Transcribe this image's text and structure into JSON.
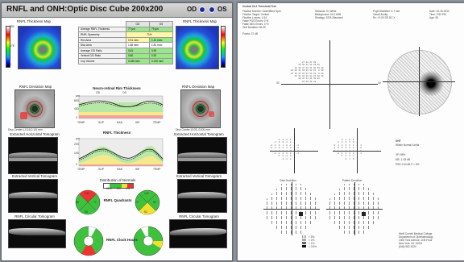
{
  "oct": {
    "title": "RNFL and ONH:Optic Disc Cube 200x200",
    "od_label": "OD",
    "os_label": "OS",
    "od_dot_color": "#1c2a9a",
    "os_dot_color": "#1c2a9a",
    "left_map_title": "RNFL Thickness Map",
    "right_map_title": "RNFL Thickness Map",
    "scale_top": "350",
    "scale_mid": "175",
    "scale_bot": "0",
    "table_header": [
      "",
      "OD",
      "OS"
    ],
    "table_rows": [
      [
        "Average RNFL Thickness",
        "77 µm",
        "79 µm"
      ],
      [
        "RNFL Symmetry",
        "71%",
        ""
      ],
      [
        "Rim Area",
        "0.91 mm²",
        "1.10 mm²"
      ],
      [
        "Disc Area",
        "1.85 mm²",
        "1.81 mm²"
      ],
      [
        "Average C/D Ratio",
        "0.61",
        "0.50"
      ],
      [
        "Vertical C/D Ratio",
        "0.60",
        "0.52"
      ],
      [
        "Cup Volume",
        "0.185 mm³",
        "0.130 mm³"
      ]
    ],
    "left_dev_title": "RNFL Deviation Map",
    "right_dev_title": "RNFL Deviation Map",
    "rim_title": "Neuro-retinal Rim Thickness",
    "rnfl_title": "RNFL Thickness",
    "legend_od": "OD",
    "legend_os": "OS",
    "plot_unit": "µm",
    "plot_yticks": [
      "800",
      "400",
      "0"
    ],
    "rnfl_yticks": [
      "200",
      "100",
      "0"
    ],
    "plot_xticks": [
      "TEMP",
      "SUP",
      "NAS",
      "INF",
      "TEMP"
    ],
    "left_center": "Disc Center (-0.16,0.12) mm",
    "right_center": "Disc Center (0.03,-0.03) mm",
    "left_extract_h": "Extracted Horizontal Tomogram",
    "right_extract_h": "Extracted Horizontal Tomogram",
    "left_extract_v": "Extracted Vertical Tomogram",
    "right_extract_v": "Extracted Vertical Tomogram",
    "left_circ": "RNFL Circular Tomogram",
    "right_circ": "RNFL Circular Tomogram",
    "dist_title": "Distribution of Normals",
    "dist_labels": [
      "95%",
      "5%",
      "1%"
    ],
    "quadrants_label": "RNFL Quadrants",
    "clock_label": "RNFL Clock Hours",
    "quad_od_values": [
      "130",
      "72",
      "58",
      "88"
    ],
    "quad_os_values": [
      "125",
      "69",
      "92",
      "70"
    ],
    "clock_od_values": [
      "108",
      "135",
      "148",
      "76",
      "55",
      "45",
      "52",
      "89",
      "122",
      "118",
      "60",
      "71"
    ],
    "clock_os_values": [
      "115",
      "142",
      "129",
      "88",
      "58",
      "47",
      "49",
      "91",
      "130",
      "104",
      "64",
      "80"
    ]
  },
  "vf": {
    "test_name": "Central 24-2 Threshold Test",
    "col1": [
      "Fixation Monitor: Gaze/Blind Spot",
      "Fixation Target: Central",
      "Fixation Losses: 1/14",
      "False POS Errors: 0 %",
      "False NEG Errors: 0 %",
      "Test Duration: 06:09"
    ],
    "col2": [
      "Stimulus: III, White",
      "Background: 31.5 ASB",
      "Strategy: SITA-Standard"
    ],
    "col3": [
      "Pupil Diameter: 4.7 mm",
      "Visual Acuity:",
      "Rx: +0.00 DS   DC X"
    ],
    "col4": [
      "Date: 10-15-2012",
      "Time: 2:53 PM",
      "Age: 55"
    ],
    "fovea": "Fovea: 37 dB",
    "scale_labels": [
      "30",
      "30"
    ],
    "ght_title": "GHT",
    "ght_result": "Within Normal Limits",
    "vfi": "VFI   98%",
    "md": "MD    -1.93 dB",
    "psd": "PSD   2.54 dB P < 5%",
    "total_dev": "Total Deviation",
    "pattern_dev": "Pattern Deviation",
    "prob_labels": [
      "< 5%",
      "< 2%",
      "< 1%",
      "< 0.5%"
    ],
    "footer": [
      "Weill Cornell Medical College",
      "Department of Ophthalmology",
      "1305 York Avenue, 11th Floor",
      "New York, NY 10021",
      "(646) 962-2020"
    ],
    "numgrid_top": "         27 28 27 28\n      29 30 31 31 29 28\n   28 30 31 32 31 30 30 29\n26 29 31 33 33 32 31  0 30\n27 30 32 33 34 33 32  0 29\n   29 31 32 33 32 31 30 29\n      30 31 31 31 30 29\n         28 29 29 28",
    "numgrid_td": "      -2 -1 -2 -1\n   -1  0  0 -1 -2 -1\n-2 -1  0  1  0 -1 -2 -1\n-3 -2  0  1  1  0 -1 -2\n-2 -1  0  1  1  0 -1 -2\n   -2 -1  0  0  0 -1 -1\n      -1  0 -1  0 -1\n         -2 -1 -2 -1",
    "numgrid_pd": "       0  1  0  1\n    1  2  2  1  0  1\n 0  1  2  3  2  1  0  1\n-1  0  2  3  3  2  1  0\n 0  1  2  3  3  2  1  0\n    0  1  2  2  2  1  1\n       1  2  1  2  1\n          0  1  0  1"
  }
}
